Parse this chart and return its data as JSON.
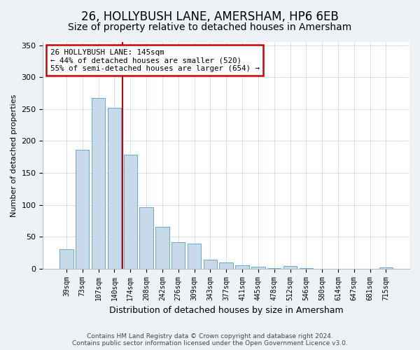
{
  "title": "26, HOLLYBUSH LANE, AMERSHAM, HP6 6EB",
  "subtitle": "Size of property relative to detached houses in Amersham",
  "xlabel": "Distribution of detached houses by size in Amersham",
  "ylabel": "Number of detached properties",
  "bar_labels": [
    "39sqm",
    "73sqm",
    "107sqm",
    "140sqm",
    "174sqm",
    "208sqm",
    "242sqm",
    "276sqm",
    "309sqm",
    "343sqm",
    "377sqm",
    "411sqm",
    "445sqm",
    "478sqm",
    "512sqm",
    "546sqm",
    "580sqm",
    "614sqm",
    "647sqm",
    "681sqm",
    "715sqm"
  ],
  "bar_values": [
    30,
    186,
    267,
    252,
    178,
    96,
    66,
    41,
    39,
    14,
    10,
    5,
    3,
    1,
    4,
    1,
    0,
    0,
    0,
    0,
    2
  ],
  "bar_color": "#c8daea",
  "bar_edgecolor": "#6aaac8",
  "vline_x": 3.5,
  "vline_color": "#cc0000",
  "annotation_line1": "26 HOLLYBUSH LANE: 145sqm",
  "annotation_line2": "← 44% of detached houses are smaller (520)",
  "annotation_line3": "55% of semi-detached houses are larger (654) →",
  "annotation_box_edgecolor": "#cc0000",
  "annotation_box_facecolor": "#ffffff",
  "ylim": [
    0,
    355
  ],
  "yticks": [
    0,
    50,
    100,
    150,
    200,
    250,
    300,
    350
  ],
  "footer1": "Contains HM Land Registry data © Crown copyright and database right 2024.",
  "footer2": "Contains public sector information licensed under the Open Government Licence v3.0.",
  "background_color": "#eef2f6",
  "plot_background": "#ffffff",
  "title_fontsize": 12,
  "subtitle_fontsize": 10
}
